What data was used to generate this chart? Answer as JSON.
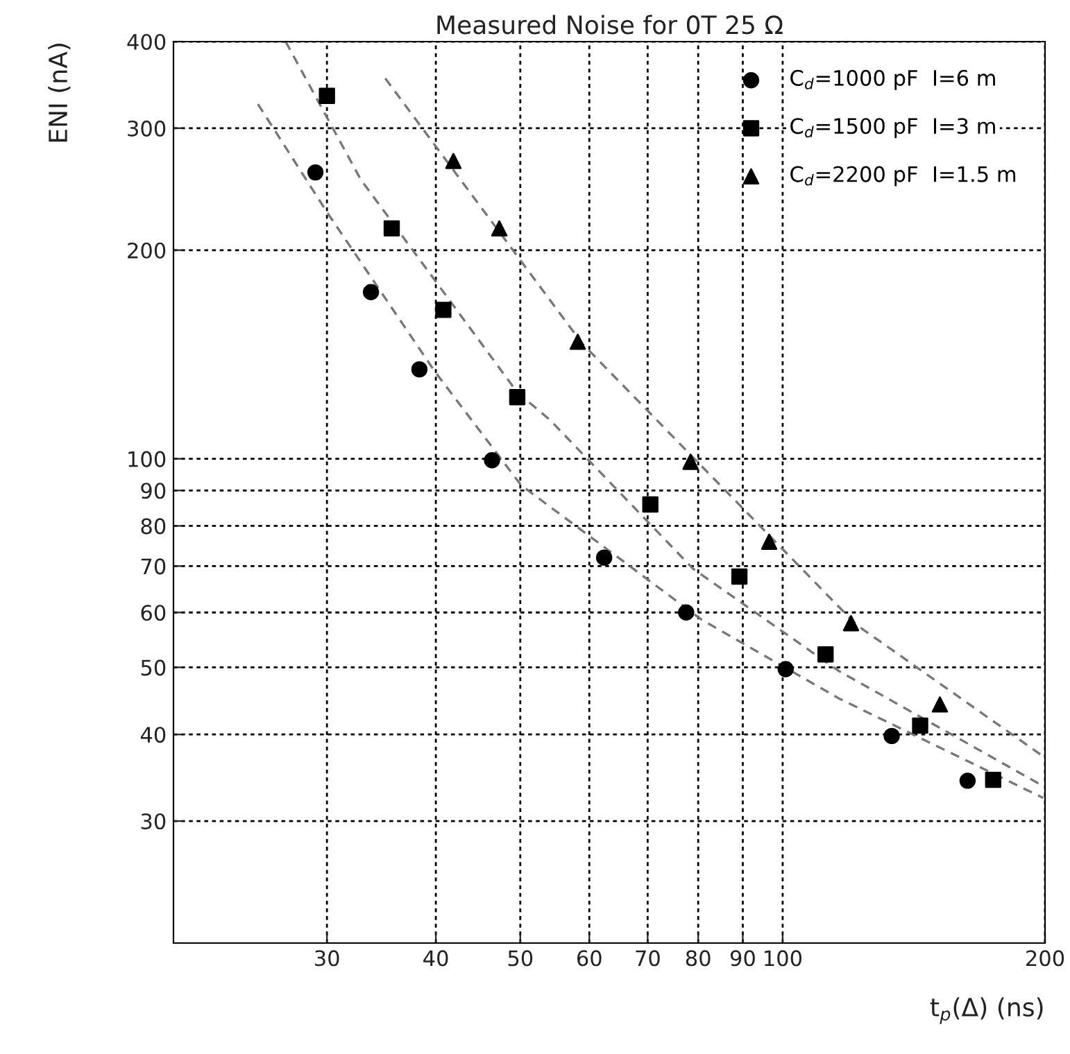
{
  "chart_data": {
    "type": "scatter",
    "title": "Measured Noise for 0T 25 Ω",
    "xlabel": "t$_{p}$(Δ) (ns)",
    "ylabel": "ENI (nA)",
    "log": "xy",
    "xlim": [
      20,
      200
    ],
    "ylim": [
      20,
      400
    ],
    "xticks": [
      30,
      40,
      50,
      60,
      70,
      80,
      90,
      100,
      200
    ],
    "yticks": [
      30,
      40,
      50,
      60,
      70,
      80,
      90,
      100,
      200,
      300,
      400
    ],
    "grid": true,
    "legend": "top right",
    "series": [
      {
        "name": "C$_{d}$=1000 pF  I=6 m",
        "color": "#000000",
        "marker": "circle",
        "x": [
          29.1,
          33.7,
          38.3,
          46.4,
          62.4,
          77.5,
          100.8,
          133.4,
          163
        ],
        "values": [
          259,
          174,
          134.6,
          99.5,
          72,
          60,
          49.7,
          39.8,
          34.3
        ]
      },
      {
        "name": "C$_{d}$=1500 pF  I=3 m",
        "color": "#000000",
        "marker": "square",
        "x": [
          30,
          35.6,
          40.8,
          49.6,
          70.5,
          89.2,
          112,
          143.8,
          174.4
        ],
        "values": [
          334,
          215,
          164,
          122.7,
          85.9,
          67.6,
          52.2,
          41.2,
          34.4
        ]
      },
      {
        "name": "C$_{d}$=2200 pF  I=1.5 m",
        "color": "#000000",
        "marker": "triangle",
        "x": [
          41.9,
          47.3,
          58.2,
          78.4,
          96.5,
          119.8,
          151.5
        ],
        "values": [
          269,
          215,
          147.5,
          99,
          75.9,
          57.9,
          44.2
        ]
      },
      {
        "type": "line",
        "color": "#777777",
        "line_style": "dashed",
        "marker": "none",
        "x": [
          25.0,
          30,
          39.9,
          50.1,
          80.7,
          116,
          199
        ],
        "values": [
          325,
          227,
          133.6,
          91.6,
          58.6,
          45.1,
          32.4
        ]
      },
      {
        "type": "line",
        "color": "#777777",
        "line_style": "dashed",
        "marker": "none",
        "x": [
          26.9,
          32.8,
          49.6,
          54.1,
          78.9,
          116,
          199
        ],
        "values": [
          400,
          253,
          124.7,
          113.7,
          69.4,
          49.4,
          33.7
        ]
      },
      {
        "type": "line",
        "color": "#777777",
        "line_style": "dashed",
        "marker": "none",
        "x": [
          35,
          58.9,
          78.9,
          121.5,
          199
        ],
        "values": [
          354,
          146.6,
          100.5,
          57.6,
          37.2
        ]
      }
    ]
  }
}
